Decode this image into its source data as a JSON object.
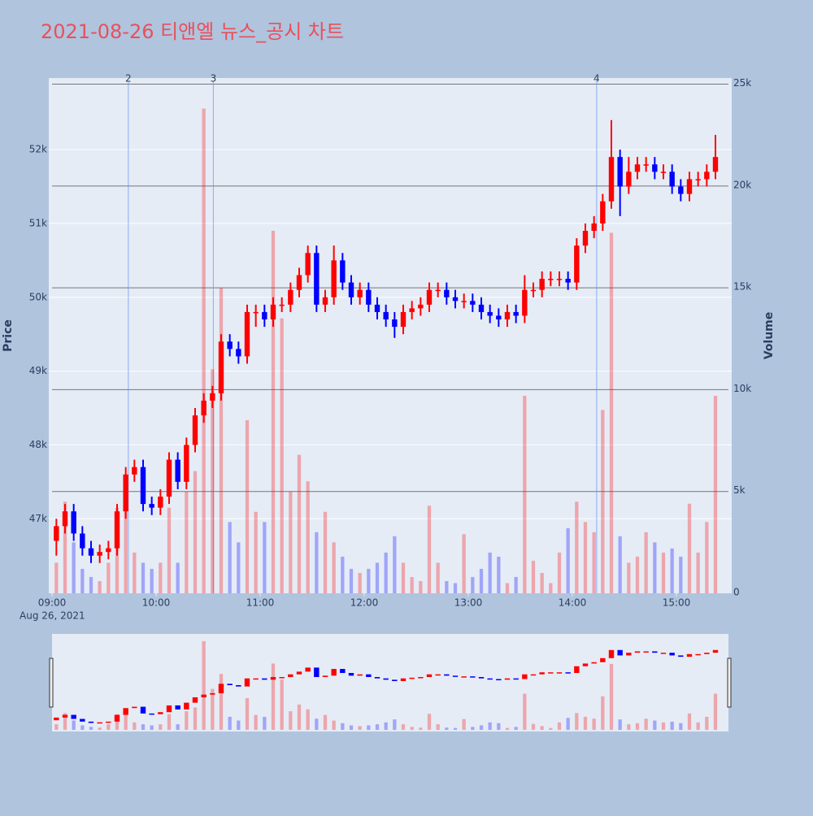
{
  "chart_data": {
    "type": "candlestick",
    "title": "2021-08-26 티앤엘 뉴스_공시 차트",
    "x_date_label": "Aug 26, 2021",
    "yaxis_title": "Price",
    "y2axis_title": "Volume",
    "increasing_color": "#ff0000",
    "decreasing_color": "#0000ff",
    "x": [
      "09:00",
      "09:05",
      "09:10",
      "09:15",
      "09:20",
      "09:25",
      "09:30",
      "09:35",
      "09:40",
      "09:45",
      "09:50",
      "09:55",
      "10:00",
      "10:05",
      "10:10",
      "10:15",
      "10:20",
      "10:25",
      "10:30",
      "10:35",
      "10:40",
      "10:45",
      "10:50",
      "10:55",
      "11:00",
      "11:05",
      "11:10",
      "11:15",
      "11:20",
      "11:25",
      "11:30",
      "11:35",
      "11:40",
      "11:45",
      "11:50",
      "11:55",
      "12:00",
      "12:05",
      "12:10",
      "12:15",
      "12:20",
      "12:25",
      "12:30",
      "12:35",
      "12:40",
      "12:45",
      "12:50",
      "12:55",
      "13:00",
      "13:05",
      "13:10",
      "13:15",
      "13:20",
      "13:25",
      "13:30",
      "13:35",
      "13:40",
      "13:45",
      "13:50",
      "13:55",
      "14:00",
      "14:05",
      "14:10",
      "14:15",
      "14:20",
      "14:25",
      "14:30",
      "14:35",
      "14:40",
      "14:45",
      "14:50",
      "14:55",
      "15:00",
      "15:05",
      "15:10",
      "15:15",
      "15:20"
    ],
    "open": [
      46700,
      46900,
      47100,
      46800,
      46600,
      46500,
      46550,
      46600,
      47100,
      47600,
      47700,
      47200,
      47150,
      47300,
      47800,
      47500,
      48000,
      48400,
      48600,
      48700,
      49400,
      49300,
      49200,
      49800,
      49800,
      49700,
      49900,
      49900,
      50100,
      50300,
      50600,
      49900,
      50000,
      50500,
      50200,
      50000,
      50100,
      49900,
      49800,
      49700,
      49600,
      49800,
      49850,
      49900,
      50100,
      50100,
      50000,
      49950,
      49950,
      49900,
      49800,
      49750,
      49700,
      49800,
      49750,
      50100,
      50100,
      50250,
      50250,
      50250,
      50200,
      50700,
      50900,
      51000,
      51300,
      51900,
      51500,
      51700,
      51800,
      51800,
      51700,
      51700,
      51500,
      51400,
      51600,
      51600,
      51700
    ],
    "high": [
      47000,
      47200,
      47200,
      46900,
      46700,
      46650,
      46700,
      47200,
      47700,
      47800,
      47800,
      47300,
      47400,
      47900,
      47900,
      48100,
      48500,
      48700,
      48800,
      49500,
      49500,
      49400,
      49900,
      49900,
      49900,
      50000,
      50000,
      50200,
      50400,
      50700,
      50700,
      50100,
      50700,
      50600,
      50300,
      50200,
      50200,
      50000,
      49900,
      49800,
      49900,
      49950,
      50000,
      50200,
      50200,
      50200,
      50100,
      50050,
      50050,
      50000,
      49900,
      49850,
      49900,
      49900,
      50300,
      50200,
      50350,
      50350,
      50350,
      50350,
      50800,
      51000,
      51100,
      51400,
      52400,
      52000,
      51900,
      51900,
      51900,
      51900,
      51800,
      51800,
      51600,
      51700,
      51700,
      51800,
      52200
    ],
    "low": [
      46500,
      46800,
      46700,
      46500,
      46400,
      46400,
      46450,
      46500,
      47000,
      47500,
      47100,
      47050,
      47050,
      47200,
      47400,
      47400,
      47900,
      48300,
      48500,
      48600,
      49200,
      49100,
      49100,
      49600,
      49600,
      49600,
      49800,
      49800,
      50000,
      50200,
      49800,
      49800,
      49900,
      50100,
      49900,
      49900,
      49800,
      49700,
      49600,
      49450,
      49500,
      49700,
      49750,
      49800,
      50000,
      49900,
      49850,
      49850,
      49800,
      49700,
      49650,
      49600,
      49600,
      49650,
      49650,
      50000,
      50000,
      50150,
      50150,
      50100,
      50100,
      50600,
      50800,
      50900,
      51200,
      51100,
      51400,
      51600,
      51700,
      51600,
      51600,
      51400,
      51300,
      51300,
      51500,
      51500,
      51600
    ],
    "close": [
      46900,
      47100,
      46800,
      46600,
      46500,
      46550,
      46600,
      47100,
      47600,
      47700,
      47200,
      47150,
      47300,
      47800,
      47500,
      48000,
      48400,
      48600,
      48700,
      49400,
      49300,
      49200,
      49800,
      49800,
      49700,
      49900,
      49900,
      50100,
      50300,
      50600,
      49900,
      50000,
      50500,
      50200,
      50000,
      50100,
      49900,
      49800,
      49700,
      49600,
      49800,
      49850,
      49900,
      50100,
      50100,
      50000,
      49950,
      49950,
      49900,
      49800,
      49750,
      49700,
      49800,
      49750,
      50100,
      50100,
      50250,
      50250,
      50250,
      50200,
      50700,
      50900,
      51000,
      51300,
      51900,
      51500,
      51700,
      51800,
      51800,
      51700,
      51700,
      51500,
      51400,
      51600,
      51600,
      51700,
      51900
    ],
    "volume": [
      1500,
      4500,
      2500,
      1200,
      800,
      600,
      1500,
      4200,
      5000,
      2000,
      1500,
      1200,
      1500,
      4200,
      1500,
      5000,
      6000,
      23800,
      11000,
      15000,
      3500,
      2500,
      8500,
      4000,
      3500,
      17800,
      13500,
      5000,
      6800,
      5500,
      3000,
      4000,
      2500,
      1800,
      1200,
      1000,
      1200,
      1500,
      2000,
      2800,
      1500,
      800,
      600,
      4300,
      1500,
      600,
      500,
      2900,
      800,
      1200,
      2000,
      1800,
      500,
      800,
      9700,
      1600,
      1000,
      500,
      2000,
      3200,
      4500,
      3500,
      3000,
      9000,
      17700,
      2800,
      1500,
      1800,
      3000,
      2500,
      2000,
      2200,
      1800,
      4400,
      2000,
      3500,
      9700
    ],
    "xlim": [
      "09:00",
      "15:30"
    ],
    "xticks": [
      "09:00",
      "10:00",
      "11:00",
      "12:00",
      "13:00",
      "14:00",
      "15:00"
    ],
    "ylim": [
      45990,
      52970
    ],
    "yticks": [
      {
        "value": 47000,
        "label": "47k"
      },
      {
        "value": 48000,
        "label": "48k"
      },
      {
        "value": 49000,
        "label": "49k"
      },
      {
        "value": 50000,
        "label": "50k"
      },
      {
        "value": 51000,
        "label": "51k"
      },
      {
        "value": 52000,
        "label": "52k"
      }
    ],
    "y2lim": [
      0,
      25300
    ],
    "y2ticks": [
      0,
      {
        "value": 5000,
        "label": "5k"
      },
      {
        "value": 10000,
        "label": "10k"
      },
      {
        "value": 15000,
        "label": "15k"
      },
      {
        "value": 20000,
        "label": "20k"
      },
      {
        "value": 25000,
        "label": "25k"
      }
    ],
    "annotations": [
      {
        "x": "09:44",
        "text": "2"
      },
      {
        "x": "10:33",
        "text": "3"
      },
      {
        "x": "14:14",
        "text": "4"
      }
    ]
  }
}
